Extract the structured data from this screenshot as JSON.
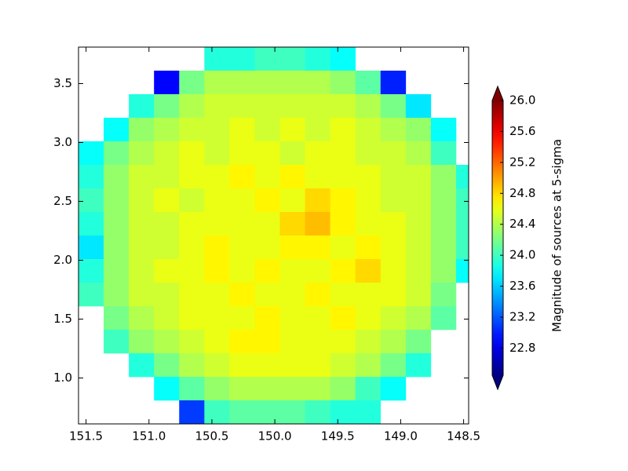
{
  "chart_data": {
    "type": "heatmap",
    "colorbar_label": "Magnitude of sources at 5-sigma",
    "colormap": "jet",
    "xlim": [
      151.56,
      148.46
    ],
    "ylim": [
      0.61,
      3.81
    ],
    "clim": [
      22.45,
      26.0
    ],
    "xticks": [
      151.5,
      {
        "value": 151,
        "label": "151.0"
      },
      150.5,
      {
        "value": 150,
        "label": "150.0"
      },
      149.5,
      {
        "value": 149,
        "label": "149.0"
      },
      148.5
    ],
    "yticks": [
      {
        "value": 1,
        "label": "1.0"
      },
      1.5,
      {
        "value": 2,
        "label": "2.0"
      },
      2.5,
      {
        "value": 3,
        "label": "3.0"
      },
      3.5
    ],
    "cticks": [
      22.8,
      23.2,
      23.6,
      {
        "value": 24,
        "label": "24.0"
      },
      24.4,
      24.8,
      25.2,
      25.6,
      {
        "value": 26,
        "label": "26.0"
      }
    ],
    "xbins": [
      151.56,
      151.36,
      151.16,
      150.96,
      150.76,
      150.56,
      150.36,
      150.16,
      149.96,
      149.76,
      149.56,
      149.36,
      149.16,
      148.96,
      148.76,
      148.56,
      148.36
    ],
    "ybins": [
      3.81,
      3.61,
      3.41,
      3.21,
      3.01,
      2.81,
      2.61,
      2.41,
      2.21,
      2.01,
      1.81,
      1.61,
      1.41,
      1.21,
      1.01,
      0.81,
      0.61
    ],
    "values": [
      [
        null,
        null,
        null,
        null,
        null,
        23.9,
        23.9,
        24.0,
        24.0,
        23.9,
        23.8,
        null,
        null,
        null,
        null,
        null
      ],
      [
        null,
        null,
        null,
        22.9,
        24.2,
        24.4,
        24.4,
        24.4,
        24.4,
        24.4,
        24.3,
        24.1,
        23.0,
        null,
        null,
        null
      ],
      [
        null,
        null,
        23.9,
        24.2,
        24.4,
        24.5,
        24.5,
        24.5,
        24.5,
        24.5,
        24.5,
        24.4,
        24.2,
        23.7,
        null,
        null
      ],
      [
        null,
        23.8,
        24.3,
        24.4,
        24.5,
        24.5,
        24.6,
        24.5,
        24.6,
        24.5,
        24.6,
        24.5,
        24.4,
        24.3,
        23.8,
        null
      ],
      [
        23.8,
        24.2,
        24.4,
        24.5,
        24.6,
        24.5,
        24.6,
        24.6,
        24.5,
        24.6,
        24.6,
        24.5,
        24.5,
        24.4,
        24.0,
        null
      ],
      [
        23.9,
        24.3,
        24.5,
        24.5,
        24.6,
        24.6,
        24.7,
        24.6,
        24.7,
        24.6,
        24.6,
        24.6,
        24.5,
        24.5,
        24.3,
        23.9
      ],
      [
        24.0,
        24.3,
        24.5,
        24.6,
        24.5,
        24.6,
        24.6,
        24.7,
        24.6,
        24.8,
        24.7,
        24.6,
        24.5,
        24.5,
        24.3,
        24.0
      ],
      [
        23.9,
        24.3,
        24.5,
        24.5,
        24.6,
        24.6,
        24.6,
        24.6,
        24.8,
        24.9,
        24.7,
        24.6,
        24.6,
        24.5,
        24.3,
        24.0
      ],
      [
        23.7,
        24.3,
        24.5,
        24.5,
        24.6,
        24.7,
        24.6,
        24.6,
        24.7,
        24.7,
        24.6,
        24.7,
        24.6,
        24.5,
        24.3,
        24.0
      ],
      [
        23.9,
        24.3,
        24.5,
        24.6,
        24.6,
        24.7,
        24.6,
        24.7,
        24.6,
        24.6,
        24.7,
        24.8,
        24.6,
        24.5,
        24.3,
        23.8
      ],
      [
        24.0,
        24.3,
        24.5,
        24.5,
        24.6,
        24.6,
        24.7,
        24.6,
        24.6,
        24.7,
        24.6,
        24.6,
        24.6,
        24.5,
        24.2,
        null
      ],
      [
        null,
        24.2,
        24.4,
        24.5,
        24.6,
        24.6,
        24.6,
        24.7,
        24.6,
        24.6,
        24.7,
        24.6,
        24.5,
        24.4,
        24.1,
        null
      ],
      [
        null,
        24.0,
        24.3,
        24.4,
        24.5,
        24.6,
        24.7,
        24.7,
        24.6,
        24.6,
        24.6,
        24.5,
        24.4,
        24.2,
        null,
        null
      ],
      [
        null,
        null,
        23.9,
        24.2,
        24.4,
        24.5,
        24.6,
        24.6,
        24.6,
        24.6,
        24.5,
        24.4,
        24.2,
        23.9,
        null,
        null
      ],
      [
        null,
        null,
        null,
        23.8,
        24.1,
        24.3,
        24.4,
        24.4,
        24.4,
        24.4,
        24.3,
        24.0,
        23.8,
        null,
        null,
        null
      ],
      [
        null,
        null,
        null,
        null,
        23.1,
        24.0,
        24.1,
        24.1,
        24.1,
        24.0,
        23.9,
        23.9,
        null,
        null,
        null,
        null
      ]
    ]
  }
}
